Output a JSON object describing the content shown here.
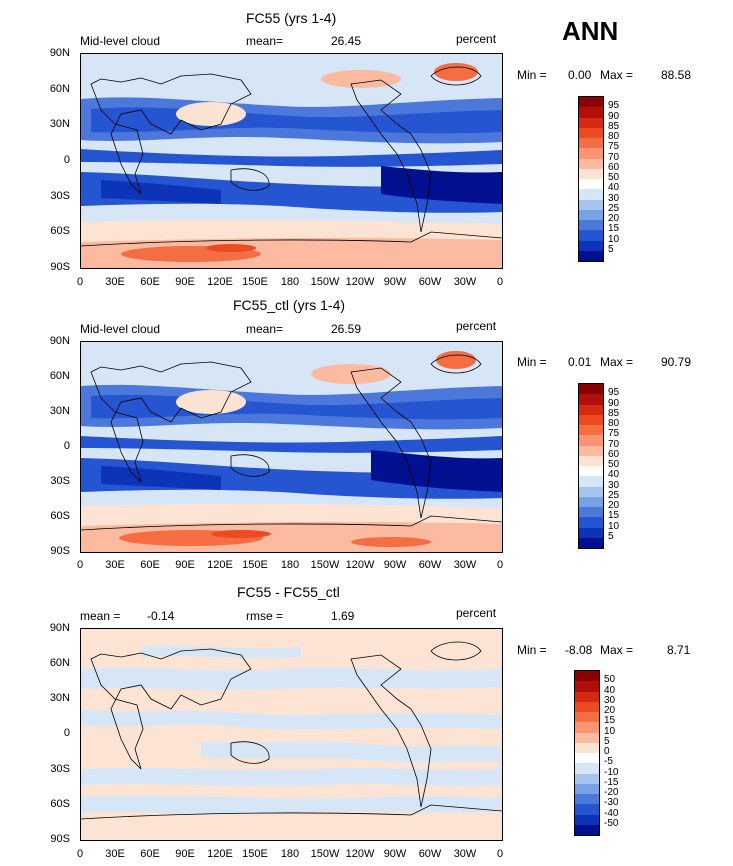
{
  "season": "ANN",
  "panels": [
    {
      "title": "FC55 (yrs 1-4)",
      "left_label": "Mid-level cloud",
      "stat_label": "mean=",
      "stat_value": "26.45",
      "units": "percent",
      "min_label": "Min =",
      "min_value": "0.00",
      "max_label": "Max =",
      "max_value": "88.58",
      "colorbar": {
        "labels": [
          "95",
          "90",
          "85",
          "80",
          "75",
          "70",
          "60",
          "50",
          "40",
          "30",
          "25",
          "20",
          "15",
          "10",
          "5"
        ],
        "colors": [
          "#8b0000",
          "#b0100a",
          "#d42a12",
          "#ec4a20",
          "#f46d43",
          "#f99474",
          "#fcbba1",
          "#fde3d3",
          "#ffffff",
          "#d6e6f7",
          "#a6c4ee",
          "#7aa0e6",
          "#4c78dc",
          "#2555d0",
          "#0c33b8",
          "#00108f"
        ]
      }
    },
    {
      "title": "FC55_ctl (yrs 1-4)",
      "left_label": "Mid-level cloud",
      "stat_label": "mean=",
      "stat_value": "26.59",
      "units": "percent",
      "min_label": "Min =",
      "min_value": "0.01",
      "max_label": "Max =",
      "max_value": "90.79",
      "colorbar": {
        "labels": [
          "95",
          "90",
          "85",
          "80",
          "75",
          "70",
          "60",
          "50",
          "40",
          "30",
          "25",
          "20",
          "15",
          "10",
          "5"
        ],
        "colors": [
          "#8b0000",
          "#b0100a",
          "#d42a12",
          "#ec4a20",
          "#f46d43",
          "#f99474",
          "#fcbba1",
          "#fde3d3",
          "#ffffff",
          "#d6e6f7",
          "#a6c4ee",
          "#7aa0e6",
          "#4c78dc",
          "#2555d0",
          "#0c33b8",
          "#00108f"
        ]
      }
    },
    {
      "title": "FC55 - FC55_ctl",
      "left_label": "mean =",
      "left_value": "-0.14",
      "stat_label": "rmse =",
      "stat_value": "1.69",
      "units": "percent",
      "min_label": "Min =",
      "min_value": "-8.08",
      "max_label": "Max =",
      "max_value": "8.71",
      "colorbar": {
        "labels": [
          "50",
          "40",
          "30",
          "20",
          "15",
          "10",
          "5",
          "0",
          "-5",
          "-10",
          "-15",
          "-20",
          "-30",
          "-40",
          "-50"
        ],
        "colors": [
          "#8b0000",
          "#b0100a",
          "#d42a12",
          "#ec4a20",
          "#f46d43",
          "#f99474",
          "#fcbba1",
          "#fde3d3",
          "#ffffff",
          "#d6e6f7",
          "#a6c4ee",
          "#7aa0e6",
          "#4c78dc",
          "#2555d0",
          "#0c33b8",
          "#00108f"
        ]
      }
    }
  ],
  "lat_labels": [
    "90N",
    "60N",
    "30N",
    "0",
    "30S",
    "60S",
    "90S"
  ],
  "lon_labels": [
    "0",
    "30E",
    "60E",
    "90E",
    "120E",
    "150E",
    "180",
    "150W",
    "120W",
    "90W",
    "60W",
    "30W",
    "0"
  ]
}
